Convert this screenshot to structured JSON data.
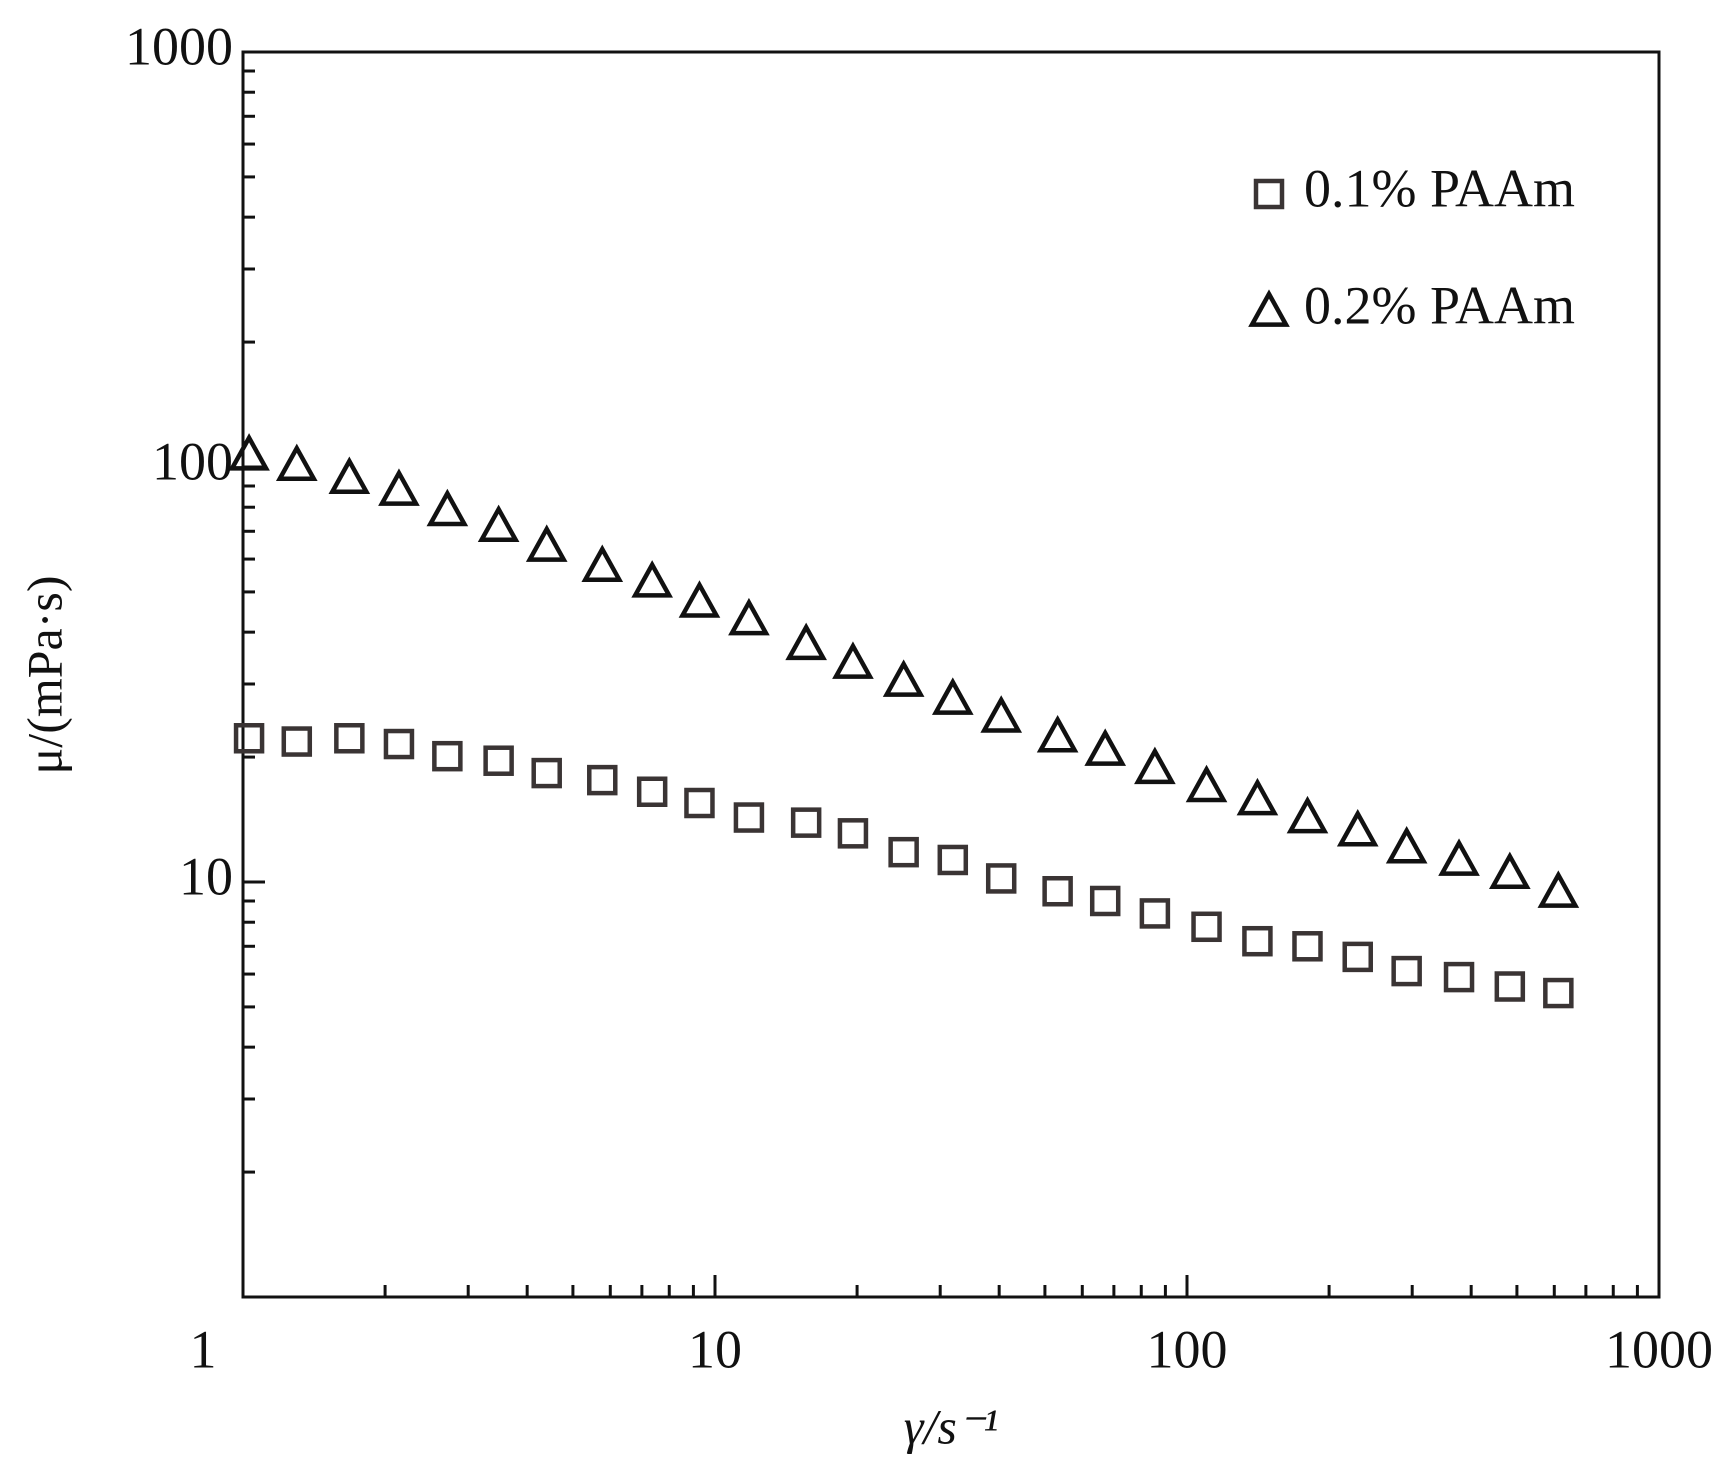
{
  "chart_data": {
    "type": "scatter",
    "x_label": "γ/s⁻¹",
    "y_label": "μ/(mPa·s)",
    "xscale": "log",
    "yscale": "log",
    "xlim": [
      1,
      1000
    ],
    "ylim": [
      1,
      1000
    ],
    "xticks": [
      1,
      10,
      100,
      1000
    ],
    "yticks": [
      10,
      100,
      1000
    ],
    "legend": "upper right",
    "series": [
      {
        "name": "0.1% PAAm",
        "marker": "square",
        "color": "#3a3434",
        "x": [
          1.03,
          1.3,
          1.68,
          2.14,
          2.71,
          3.48,
          4.4,
          5.77,
          7.36,
          9.27,
          11.8,
          15.6,
          19.6,
          25.1,
          31.9,
          40.4,
          53.2,
          67.1,
          85.5,
          110,
          141,
          180,
          230,
          292,
          377,
          483,
          612
        ],
        "values": [
          22.2,
          21.8,
          22.2,
          21.5,
          20.1,
          19.6,
          18.3,
          17.6,
          16.5,
          15.5,
          14.3,
          13.9,
          13.1,
          11.8,
          11.3,
          10.2,
          9.5,
          9.0,
          8.4,
          7.8,
          7.2,
          7.0,
          6.6,
          6.1,
          5.9,
          5.6,
          5.4
        ]
      },
      {
        "name": "0.2% PAAm",
        "marker": "triangle",
        "color": "#111111",
        "x": [
          1.03,
          1.3,
          1.68,
          2.14,
          2.71,
          3.48,
          4.4,
          5.77,
          7.36,
          9.27,
          11.8,
          15.6,
          19.6,
          25.1,
          31.9,
          40.4,
          53.2,
          67.1,
          85.5,
          110,
          141,
          180,
          230,
          292,
          377,
          483,
          612
        ],
        "values": [
          107,
          101,
          94,
          88,
          78.6,
          72,
          64.5,
          57.7,
          52.9,
          47.3,
          42.9,
          37.4,
          33.7,
          30.5,
          27.6,
          25.0,
          22.4,
          20.8,
          18.8,
          17.0,
          15.8,
          14.3,
          13.3,
          12.1,
          11.3,
          10.5,
          9.46
        ]
      }
    ]
  }
}
